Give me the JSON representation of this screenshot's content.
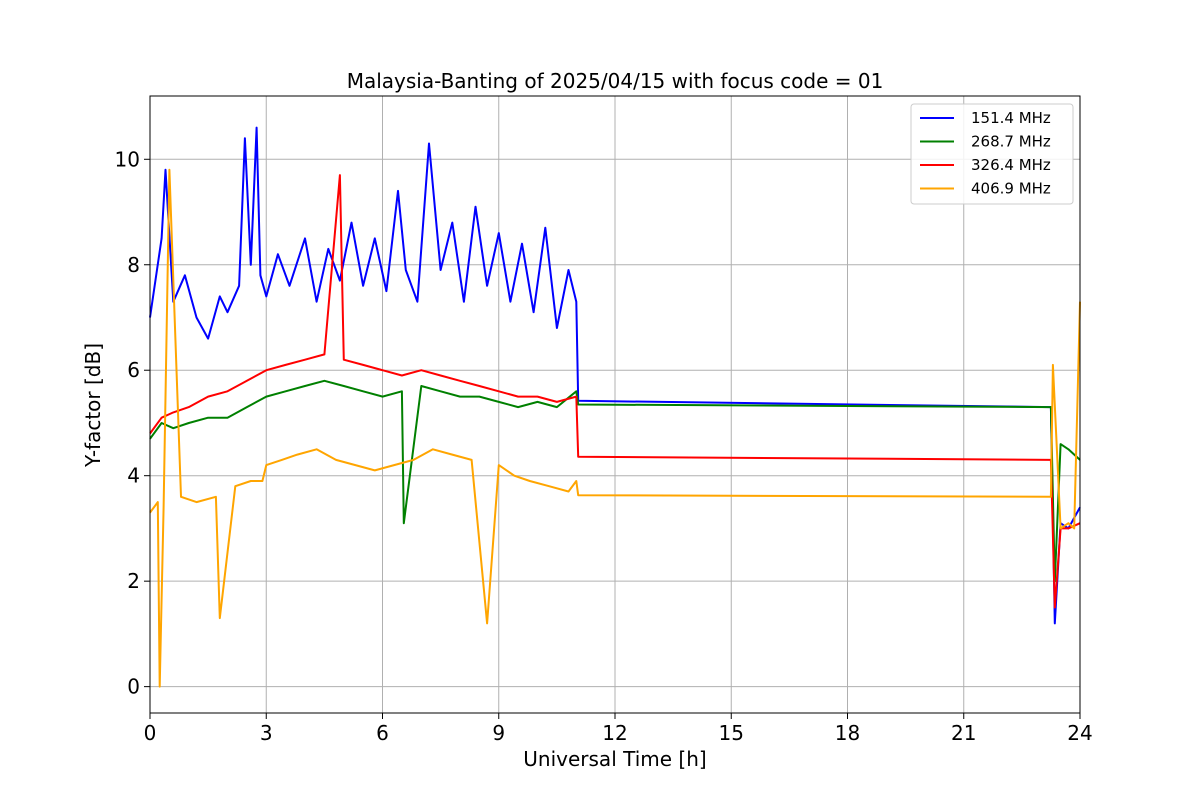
{
  "chart_data": {
    "type": "line",
    "title": "Malaysia-Banting of 2025/04/15 with focus code = 01",
    "xlabel": "Universal Time [h]",
    "ylabel": "Y-factor [dB]",
    "xlim": [
      0,
      24
    ],
    "ylim": [
      -0.5,
      11.2
    ],
    "xticks": [
      0,
      3,
      6,
      9,
      12,
      15,
      18,
      21,
      24
    ],
    "yticks": [
      0,
      2,
      4,
      6,
      8,
      10
    ],
    "grid": true,
    "legend_position": "top-right",
    "series": [
      {
        "name": "151.4 MHz",
        "color": "#0000ff",
        "x": [
          0,
          0.3,
          0.4,
          0.6,
          0.9,
          1.2,
          1.5,
          1.8,
          2.0,
          2.3,
          2.45,
          2.6,
          2.75,
          2.85,
          3.0,
          3.3,
          3.6,
          4.0,
          4.3,
          4.6,
          4.9,
          5.2,
          5.5,
          5.8,
          6.1,
          6.4,
          6.6,
          6.9,
          7.2,
          7.5,
          7.8,
          8.1,
          8.4,
          8.7,
          9.0,
          9.3,
          9.6,
          9.9,
          10.2,
          10.5,
          10.8,
          11.0,
          11.05,
          23.25,
          23.35,
          23.5,
          23.7,
          24.0
        ],
        "y": [
          7.0,
          8.5,
          9.8,
          7.3,
          7.8,
          7.0,
          6.6,
          7.4,
          7.1,
          7.6,
          10.4,
          8.0,
          10.6,
          7.8,
          7.4,
          8.2,
          7.6,
          8.5,
          7.3,
          8.3,
          7.7,
          8.8,
          7.6,
          8.5,
          7.5,
          9.4,
          7.9,
          7.3,
          10.3,
          7.9,
          8.8,
          7.3,
          9.1,
          7.6,
          8.6,
          7.3,
          8.4,
          7.1,
          8.7,
          6.8,
          7.9,
          7.3,
          5.42,
          5.3,
          1.2,
          3.1,
          3.0,
          3.4
        ]
      },
      {
        "name": "268.7 MHz",
        "color": "#008000",
        "x": [
          0,
          0.3,
          0.6,
          1.0,
          1.5,
          2.0,
          2.5,
          3.0,
          3.5,
          4.0,
          4.5,
          5.0,
          5.5,
          6.0,
          6.5,
          6.55,
          7.0,
          7.5,
          8.0,
          8.5,
          9.0,
          9.5,
          10.0,
          10.5,
          11.0,
          11.05,
          23.25,
          23.35,
          23.5,
          23.7,
          24.0
        ],
        "y": [
          4.7,
          5.0,
          4.9,
          5.0,
          5.1,
          5.1,
          5.3,
          5.5,
          5.6,
          5.7,
          5.8,
          5.7,
          5.6,
          5.5,
          5.6,
          3.1,
          5.7,
          5.6,
          5.5,
          5.5,
          5.4,
          5.3,
          5.4,
          5.3,
          5.6,
          5.35,
          5.3,
          2.0,
          4.6,
          4.5,
          4.3
        ]
      },
      {
        "name": "326.4 MHz",
        "color": "#ff0000",
        "x": [
          0,
          0.3,
          0.6,
          1.0,
          1.5,
          2.0,
          2.5,
          3.0,
          3.5,
          4.0,
          4.5,
          4.9,
          5.0,
          5.5,
          6.0,
          6.5,
          7.0,
          7.5,
          8.0,
          8.5,
          9.0,
          9.5,
          10.0,
          10.5,
          11.0,
          11.05,
          23.25,
          23.35,
          23.5,
          23.7,
          24.0
        ],
        "y": [
          4.8,
          5.1,
          5.2,
          5.3,
          5.5,
          5.6,
          5.8,
          6.0,
          6.1,
          6.2,
          6.3,
          9.7,
          6.2,
          6.1,
          6.0,
          5.9,
          6.0,
          5.9,
          5.8,
          5.7,
          5.6,
          5.5,
          5.5,
          5.4,
          5.5,
          4.36,
          4.3,
          1.5,
          3.0,
          3.0,
          3.1
        ]
      },
      {
        "name": "406.9 MHz",
        "color": "#ffa500",
        "x": [
          0,
          0.2,
          0.25,
          0.35,
          0.5,
          0.8,
          1.2,
          1.7,
          1.8,
          2.2,
          2.6,
          2.9,
          3.0,
          3.4,
          3.8,
          4.3,
          4.8,
          5.3,
          5.8,
          6.3,
          6.8,
          7.3,
          7.8,
          8.3,
          8.7,
          9.0,
          9.4,
          9.8,
          10.3,
          10.8,
          11.0,
          11.05,
          23.25,
          23.3,
          23.5,
          23.7,
          23.85,
          24.0
        ],
        "y": [
          3.3,
          3.5,
          0.0,
          3.4,
          9.8,
          3.6,
          3.5,
          3.6,
          1.3,
          3.8,
          3.9,
          3.9,
          4.2,
          4.3,
          4.4,
          4.5,
          4.3,
          4.2,
          4.1,
          4.2,
          4.3,
          4.5,
          4.4,
          4.3,
          1.2,
          4.2,
          4.0,
          3.9,
          3.8,
          3.7,
          3.9,
          3.63,
          3.6,
          6.1,
          3.0,
          3.1,
          3.0,
          7.3
        ]
      }
    ]
  }
}
